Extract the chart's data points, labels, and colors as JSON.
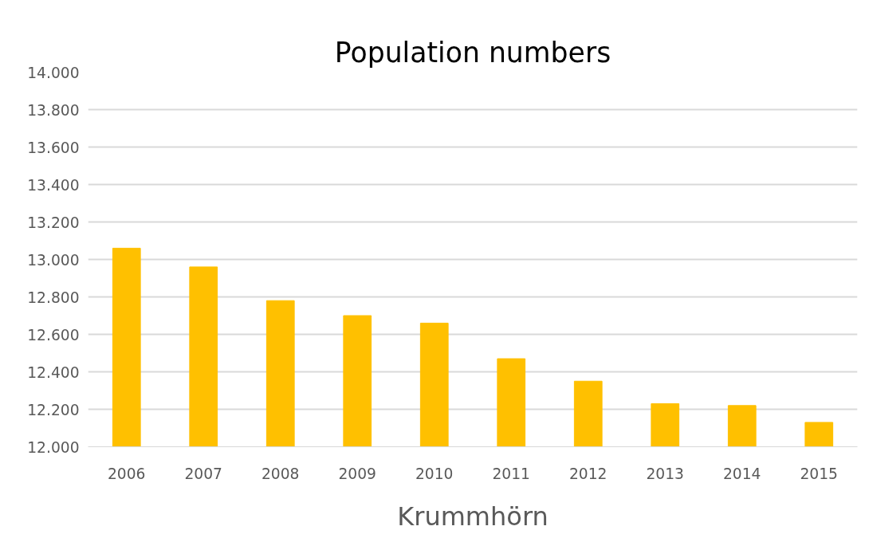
{
  "chart_data": {
    "type": "bar",
    "title": "Population numbers",
    "xlabel": "Krummhörn",
    "categories": [
      "2006",
      "2007",
      "2008",
      "2009",
      "2010",
      "2011",
      "2012",
      "2013",
      "2014",
      "2015"
    ],
    "values": [
      13060,
      12960,
      12780,
      12700,
      12660,
      12470,
      12350,
      12230,
      12220,
      12130
    ],
    "color": "#ffc000",
    "ylim": [
      12000,
      14000
    ],
    "yticks": [
      {
        "value": 12000,
        "label": "12.000"
      },
      {
        "value": 12200,
        "label": "12.200"
      },
      {
        "value": 12400,
        "label": "12.400"
      },
      {
        "value": 12600,
        "label": "12.600"
      },
      {
        "value": 12800,
        "label": "12.800"
      },
      {
        "value": 13000,
        "label": "13.000"
      },
      {
        "value": 13200,
        "label": "13.200"
      },
      {
        "value": 13400,
        "label": "13.400"
      },
      {
        "value": 13600,
        "label": "13.600"
      },
      {
        "value": 13800,
        "label": "13.800"
      },
      {
        "value": 14000,
        "label": "14.000"
      }
    ],
    "grid": "y"
  }
}
